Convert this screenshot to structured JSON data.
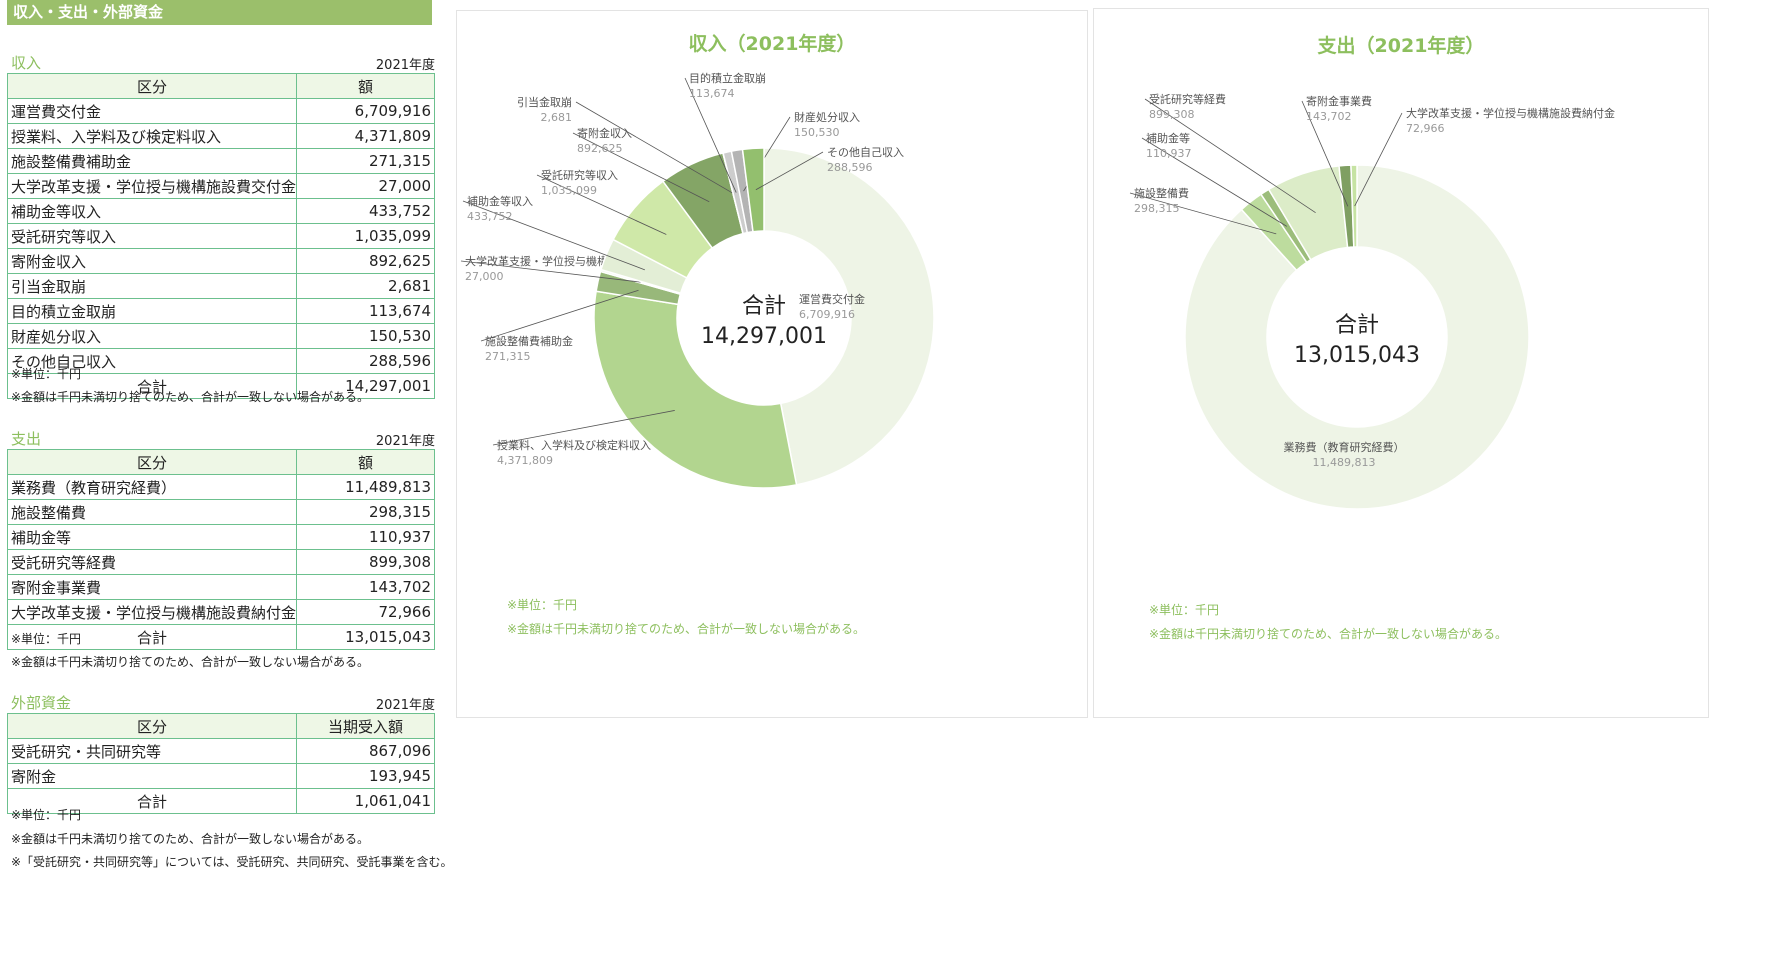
{
  "page_title": "収入・支出・外部資金",
  "income": {
    "heading": "収入",
    "year": "2021年度",
    "col_category": "区分",
    "col_amount": "額",
    "rows": [
      {
        "label": "運営費交付金",
        "value": "6,709,916"
      },
      {
        "label": "授業料、入学料及び検定料収入",
        "value": "4,371,809"
      },
      {
        "label": "施設整備費補助金",
        "value": "271,315"
      },
      {
        "label": "大学改革支援・学位授与機構施設費交付金",
        "value": "27,000"
      },
      {
        "label": "補助金等収入",
        "value": "433,752"
      },
      {
        "label": "受託研究等収入",
        "value": "1,035,099"
      },
      {
        "label": "寄附金収入",
        "value": "892,625"
      },
      {
        "label": "引当金取崩",
        "value": "2,681"
      },
      {
        "label": "目的積立金取崩",
        "value": "113,674"
      },
      {
        "label": "財産処分収入",
        "value": "150,530"
      },
      {
        "label": "その他自己収入",
        "value": "288,596"
      }
    ],
    "total_label": "合計",
    "total_value": "14,297,001",
    "note1": "※単位：千円",
    "note2": "※金額は千円未満切り捨てのため、合計が一致しない場合がある。"
  },
  "expense": {
    "heading": "支出",
    "year": "2021年度",
    "col_category": "区分",
    "col_amount": "額",
    "rows": [
      {
        "label": "業務費（教育研究経費）",
        "value": "11,489,813"
      },
      {
        "label": "施設整備費",
        "value": "298,315"
      },
      {
        "label": "補助金等",
        "value": "110,937"
      },
      {
        "label": "受託研究等経費",
        "value": "899,308"
      },
      {
        "label": "寄附金事業費",
        "value": "143,702"
      },
      {
        "label": "大学改革支援・学位授与機構施設費納付金",
        "value": "72,966"
      }
    ],
    "total_label": "合計",
    "total_value": "13,015,043",
    "note1": "※単位：千円",
    "note2": "※金額は千円未満切り捨てのため、合計が一致しない場合がある。"
  },
  "external": {
    "heading": "外部資金",
    "year": "2021年度",
    "col_category": "区分",
    "col_amount": "当期受入額",
    "rows": [
      {
        "label": "受託研究・共同研究等",
        "value": "867,096"
      },
      {
        "label": "寄附金",
        "value": "193,945"
      }
    ],
    "total_label": "合計",
    "total_value": "1,061,041",
    "note1": "※単位：千円",
    "note2": "※金額は千円未満切り捨てのため、合計が一致しない場合がある。",
    "note3": "※「受託研究・共同研究等」については、受託研究、共同研究、受託事業を含む。"
  },
  "chart_data": [
    {
      "type": "pie",
      "title": "収入（2021年度）",
      "center_label": "合計",
      "center_value": "14,297,001",
      "slices": [
        {
          "name": "運営費交付金",
          "value": 6709916,
          "value_label": "6,709,916",
          "color": "#eef4e6"
        },
        {
          "name": "授業料、入学料及び検定料収入",
          "value": 4371809,
          "value_label": "4,371,809",
          "color": "#b2d58f"
        },
        {
          "name": "施設整備費補助金",
          "value": 271315,
          "value_label": "271,315",
          "color": "#98b87a"
        },
        {
          "name": "大学改革支援・学位授与機構施設費交付金",
          "value": 27000,
          "value_label": "27,000",
          "color": "#eef4e6"
        },
        {
          "name": "補助金等収入",
          "value": 433752,
          "value_label": "433,752",
          "color": "#e3eed6"
        },
        {
          "name": "受託研究等収入",
          "value": 1035099,
          "value_label": "1,035,099",
          "color": "#cfe8a8"
        },
        {
          "name": "寄附金収入",
          "value": 892625,
          "value_label": "892,625",
          "color": "#84a566"
        },
        {
          "name": "引当金取崩",
          "value": 2681,
          "value_label": "2,681",
          "color": "#8aa26e"
        },
        {
          "name": "目的積立金取崩",
          "value": 113674,
          "value_label": "113,674",
          "color": "#cdcdcd"
        },
        {
          "name": "財産処分収入",
          "value": 150530,
          "value_label": "150,530",
          "color": "#b4b4b4"
        },
        {
          "name": "その他自己収入",
          "value": 288596,
          "value_label": "288,596",
          "color": "#93bf6e"
        }
      ],
      "notes": [
        "※単位：千円",
        "※金額は千円未満切り捨てのため、合計が一致しない場合がある。"
      ]
    },
    {
      "type": "pie",
      "title": "支出（2021年度）",
      "center_label": "合計",
      "center_value": "13,015,043",
      "slices": [
        {
          "name": "業務費（教育研究経費）",
          "value": 11489813,
          "value_label": "11,489,813",
          "color": "#eef4e6"
        },
        {
          "name": "施設整備費",
          "value": 298315,
          "value_label": "298,315",
          "color": "#bddc9e"
        },
        {
          "name": "補助金等",
          "value": 110937,
          "value_label": "110,937",
          "color": "#9cbd7b"
        },
        {
          "name": "受託研究等経費",
          "value": 899308,
          "value_label": "899,308",
          "color": "#dcecc8"
        },
        {
          "name": "寄附金事業費",
          "value": 143702,
          "value_label": "143,702",
          "color": "#7f9f62"
        },
        {
          "name": "大学改革支援・学位授与機構施設費納付金",
          "value": 72966,
          "value_label": "72,966",
          "color": "#c6e3a3"
        }
      ],
      "notes": [
        "※単位：千円",
        "※金額は千円未満切り捨てのため、合計が一致しない場合がある。"
      ]
    }
  ]
}
